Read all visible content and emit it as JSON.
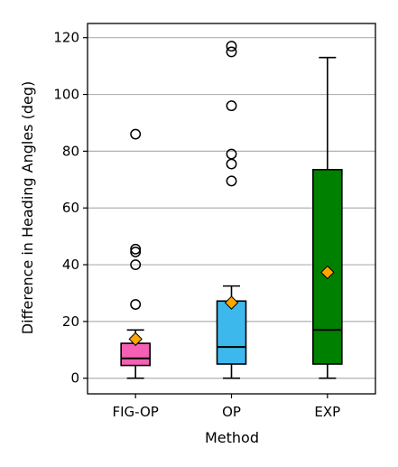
{
  "chart_data": {
    "type": "box",
    "xlabel": "Method",
    "ylabel": "Difference in Heading Angles (deg)",
    "ylim": [
      -5.5,
      125
    ],
    "yticks": [
      0,
      20,
      40,
      60,
      80,
      100,
      120
    ],
    "grid": "horizontal",
    "mean_marker": "diamond",
    "mean_color": "#FFA500",
    "categories": [
      "FIG-OP",
      "OP",
      "EXP"
    ],
    "boxes": [
      {
        "category": "FIG-OP",
        "color": "#F560B4",
        "whisker_low": 0,
        "q1": 4.5,
        "median": 7,
        "q3": 12.3,
        "whisker_high": 17,
        "mean": 13.8,
        "outliers": [
          26,
          40,
          44.5,
          45.5,
          86
        ]
      },
      {
        "category": "OP",
        "color": "#3DB8EC",
        "whisker_low": 0,
        "q1": 5,
        "median": 11,
        "q3": 27.2,
        "whisker_high": 32.5,
        "mean": 26.6,
        "outliers": [
          69.5,
          75.5,
          79,
          96,
          115,
          117
        ]
      },
      {
        "category": "EXP",
        "color": "#008000",
        "whisker_low": 0,
        "q1": 5,
        "median": 17,
        "q3": 73.5,
        "whisker_high": 113,
        "mean": 37.3,
        "outliers": []
      }
    ]
  }
}
